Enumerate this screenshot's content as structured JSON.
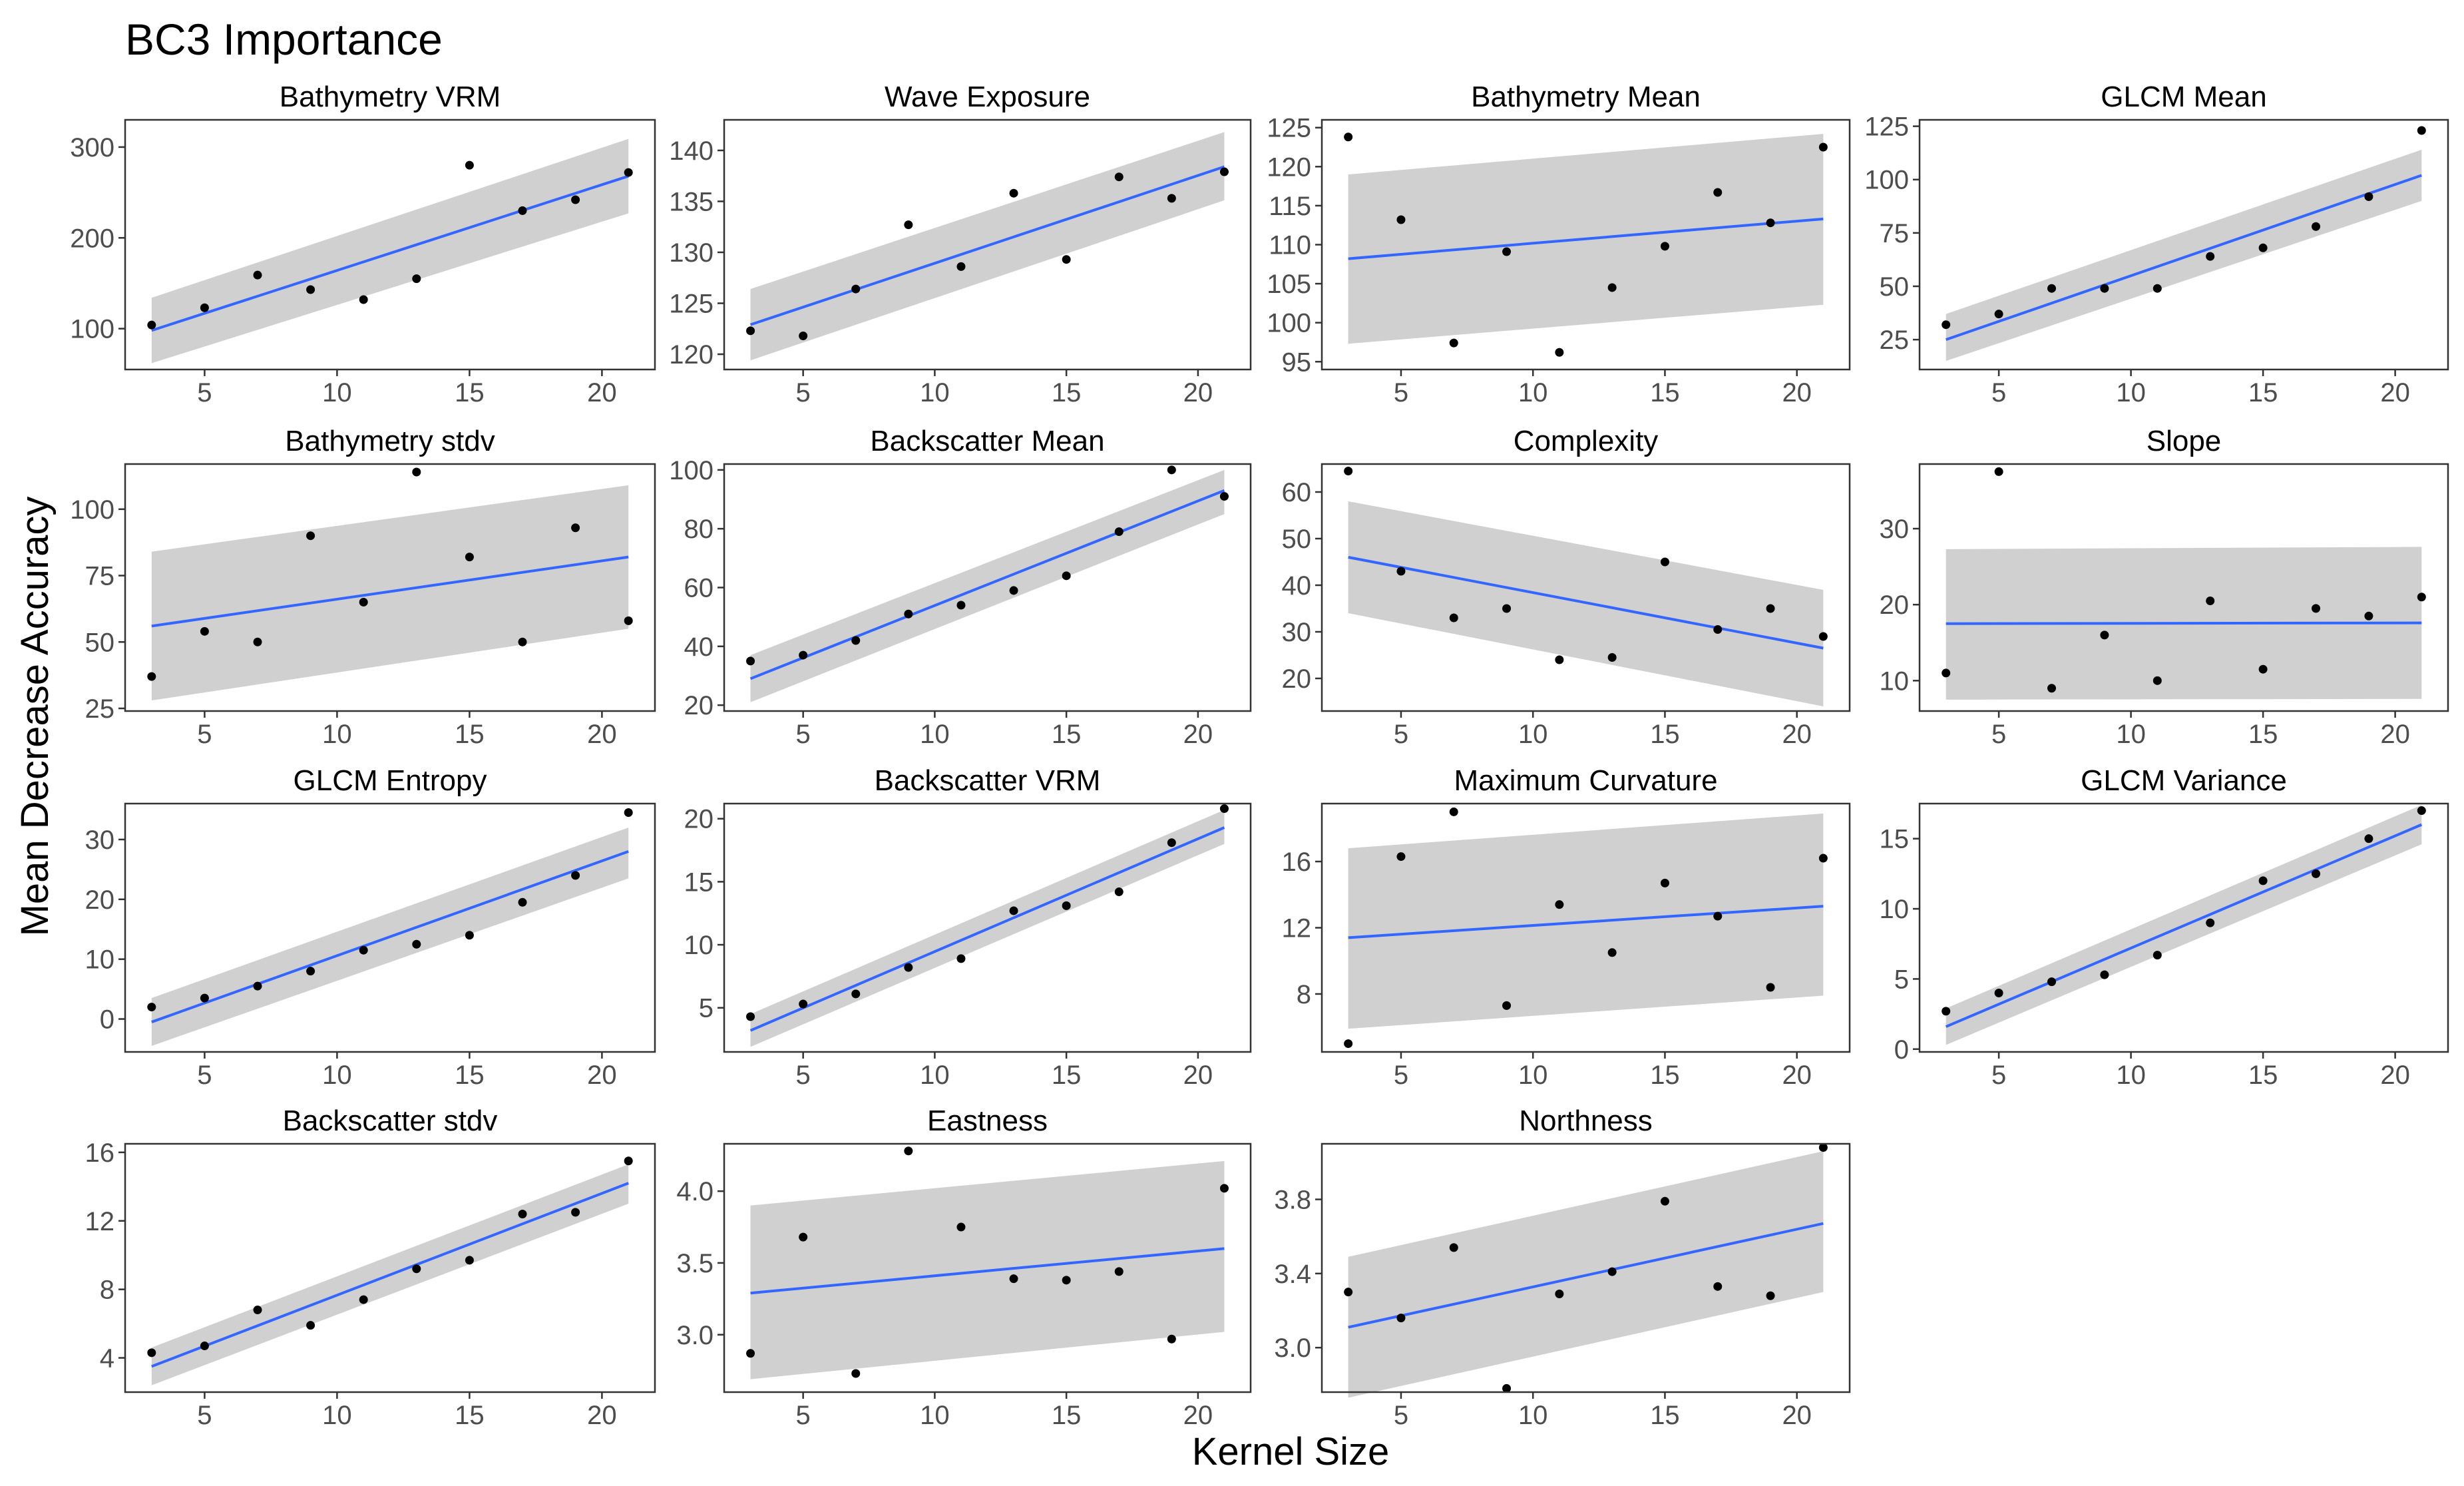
{
  "title": "BC3 Importance",
  "xlabel": "Kernel Size",
  "ylabel": "Mean Decrease Accuracy",
  "colors": {
    "fit_line": "#3366ff",
    "band": "#d0d0d0",
    "points": "#000000"
  },
  "chart_data": [
    {
      "type": "scatter",
      "title": "Bathymetry VRM",
      "x": [
        3,
        5,
        7,
        9,
        11,
        13,
        15,
        17,
        19,
        21
      ],
      "y": [
        104,
        123,
        159,
        143,
        132,
        155,
        280,
        230,
        242,
        272
      ],
      "fit": [
        98,
        268
      ],
      "ci_lower": [
        62,
        227
      ],
      "ci_upper": [
        134,
        309
      ],
      "xlim": [
        2,
        22
      ],
      "xticks": [
        5,
        10,
        15,
        20
      ],
      "ylim": [
        55,
        330
      ],
      "yticks": [
        100,
        200,
        300
      ]
    },
    {
      "type": "scatter",
      "title": "Wave Exposure",
      "x": [
        3,
        5,
        7,
        9,
        11,
        13,
        15,
        17,
        19,
        21
      ],
      "y": [
        122.3,
        121.8,
        126.4,
        132.7,
        128.6,
        135.8,
        129.3,
        137.4,
        135.3,
        137.9
      ],
      "fit": [
        122.9,
        138.4
      ],
      "ci_lower": [
        119.4,
        135.1
      ],
      "ci_upper": [
        126.4,
        141.8
      ],
      "xlim": [
        2,
        22
      ],
      "xticks": [
        5,
        10,
        15,
        20
      ],
      "ylim": [
        118.5,
        143
      ],
      "yticks": [
        120,
        125,
        130,
        135,
        140
      ]
    },
    {
      "type": "scatter",
      "title": "Bathymetry Mean",
      "x": [
        3,
        5,
        7,
        9,
        11,
        13,
        15,
        17,
        19,
        21
      ],
      "y": [
        123.8,
        113.2,
        97.4,
        109.1,
        96.2,
        104.5,
        109.8,
        116.7,
        112.8,
        122.5
      ],
      "fit": [
        108.2,
        113.3
      ],
      "ci_lower": [
        97.3,
        102.3
      ],
      "ci_upper": [
        119,
        124.2
      ],
      "xlim": [
        2,
        22
      ],
      "xticks": [
        5,
        10,
        15,
        20
      ],
      "ylim": [
        94,
        126
      ],
      "yticks": [
        95,
        100,
        105,
        110,
        115,
        120,
        125
      ]
    },
    {
      "type": "scatter",
      "title": "GLCM Mean",
      "x": [
        3,
        5,
        7,
        9,
        11,
        13,
        15,
        17,
        19,
        21
      ],
      "y": [
        32,
        37,
        49,
        49,
        49,
        64,
        68,
        78,
        92,
        123
      ],
      "fit": [
        25,
        102
      ],
      "ci_lower": [
        15,
        90
      ],
      "ci_upper": [
        37,
        114
      ],
      "xlim": [
        2,
        22
      ],
      "xticks": [
        5,
        10,
        15,
        20
      ],
      "ylim": [
        11,
        128
      ],
      "yticks": [
        25,
        50,
        75,
        100,
        125
      ]
    },
    {
      "type": "scatter",
      "title": "Bathymetry stdv",
      "x": [
        3,
        5,
        7,
        9,
        11,
        13,
        15,
        17,
        19,
        21
      ],
      "y": [
        37,
        54,
        50,
        90,
        65,
        114,
        82,
        50,
        93,
        58
      ],
      "fit": [
        56,
        82
      ],
      "ci_lower": [
        28,
        55
      ],
      "ci_upper": [
        84,
        109
      ],
      "xlim": [
        2,
        22
      ],
      "xticks": [
        5,
        10,
        15,
        20
      ],
      "ylim": [
        24,
        117
      ],
      "yticks": [
        25,
        50,
        75,
        100
      ]
    },
    {
      "type": "scatter",
      "title": "Backscatter Mean",
      "x": [
        3,
        5,
        7,
        9,
        11,
        13,
        15,
        17,
        19,
        21
      ],
      "y": [
        35,
        37,
        42,
        51,
        54,
        59,
        64,
        79,
        100,
        91
      ],
      "fit": [
        29,
        93
      ],
      "ci_lower": [
        21,
        85
      ],
      "ci_upper": [
        37,
        100
      ],
      "xlim": [
        2,
        22
      ],
      "xticks": [
        5,
        10,
        15,
        20
      ],
      "ylim": [
        18,
        102
      ],
      "yticks": [
        20,
        40,
        60,
        80,
        100
      ]
    },
    {
      "type": "scatter",
      "title": "Complexity",
      "x": [
        3,
        5,
        7,
        9,
        11,
        13,
        15,
        17,
        19,
        21
      ],
      "y": [
        64.5,
        43,
        33,
        35,
        24,
        24.5,
        45,
        30.5,
        35,
        29
      ],
      "fit": [
        46,
        26.5
      ],
      "ci_lower": [
        34,
        14
      ],
      "ci_upper": [
        58,
        39
      ],
      "xlim": [
        2,
        22
      ],
      "xticks": [
        5,
        10,
        15,
        20
      ],
      "ylim": [
        13,
        66
      ],
      "yticks": [
        20,
        30,
        40,
        50,
        60
      ]
    },
    {
      "type": "scatter",
      "title": "Slope",
      "x": [
        3,
        5,
        7,
        9,
        11,
        13,
        15,
        17,
        19,
        21
      ],
      "y": [
        11,
        37.5,
        9,
        16,
        10,
        20.5,
        11.5,
        19.5,
        18.5,
        21
      ],
      "fit": [
        17.5,
        17.6
      ],
      "ci_lower": [
        7.5,
        7.6
      ],
      "ci_upper": [
        27.3,
        27.6
      ],
      "xlim": [
        2,
        22
      ],
      "xticks": [
        5,
        10,
        15,
        20
      ],
      "ylim": [
        6,
        38.5
      ],
      "yticks": [
        10,
        20,
        30
      ]
    },
    {
      "type": "scatter",
      "title": "GLCM Entropy",
      "x": [
        3,
        5,
        7,
        9,
        11,
        13,
        15,
        17,
        19,
        21
      ],
      "y": [
        2,
        3.5,
        5.5,
        8,
        11.5,
        12.5,
        14,
        19.5,
        24,
        34.5
      ],
      "fit": [
        -0.5,
        28
      ],
      "ci_lower": [
        -4.5,
        23.5
      ],
      "ci_upper": [
        3.5,
        32
      ],
      "xlim": [
        2,
        22
      ],
      "xticks": [
        5,
        10,
        15,
        20
      ],
      "ylim": [
        -5.5,
        36
      ],
      "yticks": [
        0,
        10,
        20,
        30
      ]
    },
    {
      "type": "scatter",
      "title": "Backscatter VRM",
      "x": [
        3,
        5,
        7,
        9,
        11,
        13,
        15,
        17,
        19,
        21
      ],
      "y": [
        4.3,
        5.3,
        6.1,
        8.2,
        8.9,
        12.7,
        13.1,
        14.2,
        18.1,
        20.8
      ],
      "fit": [
        3.2,
        19.3
      ],
      "ci_lower": [
        1.9,
        18
      ],
      "ci_upper": [
        4.5,
        20.7
      ],
      "xlim": [
        2,
        22
      ],
      "xticks": [
        5,
        10,
        15,
        20
      ],
      "ylim": [
        1.5,
        21.2
      ],
      "yticks": [
        5,
        10,
        15,
        20
      ]
    },
    {
      "type": "scatter",
      "title": "Maximum Curvature",
      "x": [
        3,
        5,
        7,
        9,
        11,
        13,
        15,
        17,
        19,
        21
      ],
      "y": [
        5,
        16.3,
        19,
        7.3,
        13.4,
        10.5,
        14.7,
        12.7,
        8.4,
        16.2
      ],
      "fit": [
        11.4,
        13.3
      ],
      "ci_lower": [
        5.9,
        7.9
      ],
      "ci_upper": [
        16.8,
        18.9
      ],
      "xlim": [
        2,
        22
      ],
      "xticks": [
        5,
        10,
        15,
        20
      ],
      "ylim": [
        4.5,
        19.5
      ],
      "yticks": [
        8,
        12,
        16
      ]
    },
    {
      "type": "scatter",
      "title": "GLCM Variance",
      "x": [
        3,
        5,
        7,
        9,
        11,
        13,
        15,
        17,
        19,
        21
      ],
      "y": [
        2.7,
        4,
        4.8,
        5.3,
        6.7,
        9,
        12,
        12.5,
        15,
        17
      ],
      "fit": [
        1.6,
        16
      ],
      "ci_lower": [
        0.3,
        14.6
      ],
      "ci_upper": [
        2.9,
        17.4
      ],
      "xlim": [
        2,
        22
      ],
      "xticks": [
        5,
        10,
        15,
        20
      ],
      "ylim": [
        -0.2,
        17.5
      ],
      "yticks": [
        0,
        5,
        10,
        15
      ]
    },
    {
      "type": "scatter",
      "title": "Backscatter stdv",
      "x": [
        3,
        5,
        7,
        9,
        11,
        13,
        15,
        17,
        19,
        21
      ],
      "y": [
        4.3,
        4.7,
        6.8,
        5.9,
        7.4,
        9.2,
        9.7,
        12.4,
        12.5,
        15.5
      ],
      "fit": [
        3.5,
        14.2
      ],
      "ci_lower": [
        2.4,
        13
      ],
      "ci_upper": [
        4.6,
        15.3
      ],
      "xlim": [
        2,
        22
      ],
      "xticks": [
        5,
        10,
        15,
        20
      ],
      "ylim": [
        2,
        16.5
      ],
      "yticks": [
        4,
        8,
        12,
        16
      ]
    },
    {
      "type": "scatter",
      "title": "Eastness",
      "x": [
        3,
        5,
        7,
        9,
        11,
        13,
        15,
        17,
        19,
        21
      ],
      "y": [
        2.87,
        3.68,
        2.73,
        4.28,
        3.75,
        3.39,
        3.38,
        3.44,
        2.97,
        4.02
      ],
      "fit": [
        3.29,
        3.6
      ],
      "ci_lower": [
        2.69,
        3.02
      ],
      "ci_upper": [
        3.9,
        4.21
      ],
      "xlim": [
        2,
        22
      ],
      "xticks": [
        5,
        10,
        15,
        20
      ],
      "ylim": [
        2.6,
        4.33
      ],
      "yticks": [
        3.0,
        3.5,
        4.0
      ],
      "ytick_labels": [
        "3.0",
        "3.5",
        "4.0"
      ]
    },
    {
      "type": "scatter",
      "title": "Northness",
      "x": [
        3,
        5,
        7,
        9,
        11,
        13,
        15,
        17,
        19,
        21
      ],
      "y": [
        3.3,
        3.16,
        3.54,
        2.78,
        3.29,
        3.41,
        3.79,
        3.33,
        3.28,
        4.08
      ],
      "fit": [
        3.11,
        3.67
      ],
      "ci_lower": [
        2.73,
        3.3
      ],
      "ci_upper": [
        3.49,
        4.06
      ],
      "xlim": [
        2,
        22
      ],
      "xticks": [
        5,
        10,
        15,
        20
      ],
      "ylim": [
        2.76,
        4.1
      ],
      "yticks": [
        3.0,
        3.4,
        3.8
      ],
      "ytick_labels": [
        "3.0",
        "3.4",
        "3.8"
      ]
    }
  ]
}
